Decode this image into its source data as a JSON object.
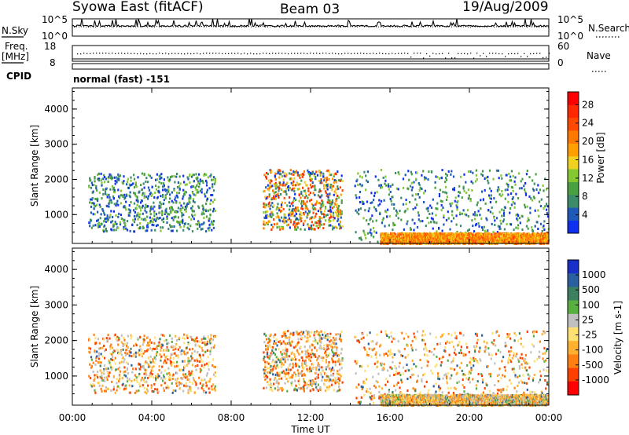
{
  "header": {
    "station": "Syowa East (fitACF)",
    "beam": "Beam 03",
    "date": "19/Aug/2009"
  },
  "summary_panels": {
    "nsky": {
      "label": "N.Sky",
      "ticks": [
        "10^5",
        "10^0"
      ]
    },
    "nsearch": {
      "label": "N.Search",
      "ticks": [
        "10^5",
        "10^0"
      ]
    },
    "freq": {
      "label_line1": "Freq.",
      "label_line2": "[MHz]",
      "ticks": [
        "18",
        "8"
      ]
    },
    "nave": {
      "label": "Nave",
      "ticks": [
        "60",
        "0"
      ]
    },
    "cpid": {
      "label": "CPID",
      "mode_text": "normal (fast) -151"
    }
  },
  "chart_data": [
    {
      "type": "heatmap",
      "name": "Power",
      "xlabel": "",
      "ylabel": "Slant Range [km]",
      "x_ticks": [
        "00:00",
        "04:00",
        "08:00",
        "12:00",
        "16:00",
        "20:00",
        "00:00"
      ],
      "xlim_hours": [
        0,
        24
      ],
      "ylim_km": [
        180,
        4600
      ],
      "y_ticks": [
        1000,
        2000,
        3000,
        4000
      ],
      "colorbar": {
        "label": "Power [dB]",
        "ticks": [
          "4",
          "8",
          "12",
          "16",
          "20",
          "24",
          "28"
        ],
        "colors": [
          "#1030f0",
          "#1e5ab8",
          "#3c8c6a",
          "#48a040",
          "#84c832",
          "#f0d020",
          "#ffa000",
          "#ff7800",
          "#ff4800",
          "#ff2800",
          "#ff0000"
        ]
      }
    },
    {
      "type": "heatmap",
      "name": "Velocity",
      "xlabel": "Time UT",
      "ylabel": "Slant Range [km]",
      "x_ticks": [
        "00:00",
        "04:00",
        "08:00",
        "12:00",
        "16:00",
        "20:00",
        "00:00"
      ],
      "xlim_hours": [
        0,
        24
      ],
      "ylim_km": [
        180,
        4600
      ],
      "y_ticks": [
        1000,
        2000,
        3000,
        4000
      ],
      "colorbar": {
        "label": "Velocity [m s-1]",
        "ticks": [
          "1000",
          "500",
          "100",
          "25",
          "-25",
          "-100",
          "-500",
          "-1000"
        ],
        "colors": [
          "#1830c8",
          "#2a60a0",
          "#3c8060",
          "#58b040",
          "#c0c0c0",
          "#ffe070",
          "#ffb030",
          "#ff8010",
          "#ff4000",
          "#ff0000"
        ]
      }
    }
  ]
}
